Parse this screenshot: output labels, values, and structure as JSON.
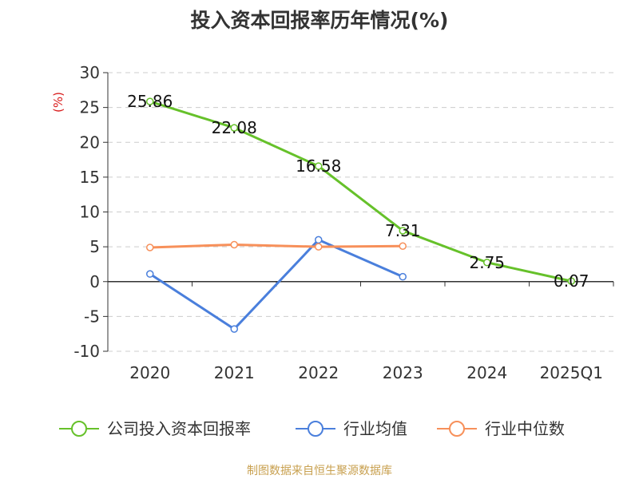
{
  "title": "投入资本回报率历年情况(%)",
  "footer": "制图数据来自恒生聚源数据库",
  "chart_data": {
    "type": "line",
    "title": "投入资本回报率历年情况(%)",
    "ylabel": "(%)",
    "categories": [
      "2020",
      "2021",
      "2022",
      "2023",
      "2024",
      "2025Q1"
    ],
    "yticks": [
      "30",
      "25",
      "20",
      "15",
      "10",
      "5",
      "0",
      "-5",
      "-10"
    ],
    "ylim": [
      -10,
      30
    ],
    "grid": true,
    "legend": "bottom",
    "series": [
      {
        "name": "公司投入资本回报率",
        "color": "#66c12a",
        "values": [
          25.86,
          22.08,
          16.58,
          7.31,
          2.75,
          0.07
        ],
        "labels": [
          "25.86",
          "22.08",
          "16.58",
          "7.31",
          "2.75",
          "0.07"
        ]
      },
      {
        "name": "行业均值",
        "color": "#4a7fdc",
        "values": [
          1.1,
          -6.8,
          6.0,
          0.7,
          null,
          null
        ]
      },
      {
        "name": "行业中位数",
        "color": "#f7905a",
        "values": [
          4.9,
          5.3,
          5.0,
          5.1,
          null,
          null
        ]
      }
    ]
  }
}
